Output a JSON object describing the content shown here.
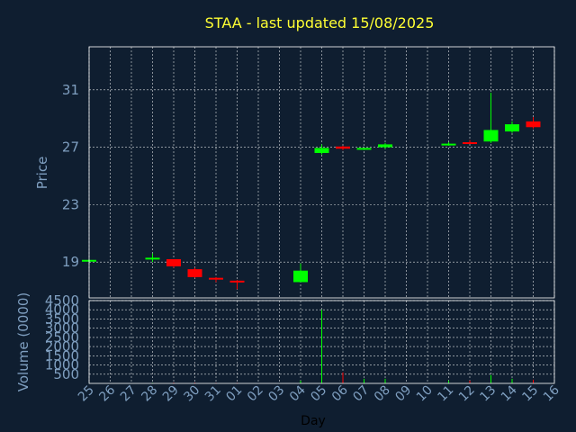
{
  "chart_data": {
    "type": "candlestick",
    "title": "STAA - last updated 15/08/2025",
    "xlabel": "Day",
    "ylabel": "Price",
    "volume_label": "Volume (0000)",
    "x_ticks": [
      "25",
      "26",
      "27",
      "28",
      "29",
      "30",
      "31",
      "01",
      "02",
      "03",
      "04",
      "05",
      "06",
      "07",
      "08",
      "09",
      "10",
      "11",
      "12",
      "13",
      "14",
      "15",
      "16"
    ],
    "price_ticks": [
      19,
      23,
      27,
      31
    ],
    "price_range": [
      16.5,
      34.0
    ],
    "volume_ticks": [
      500,
      1000,
      1500,
      2000,
      2500,
      3000,
      3500,
      4000,
      4500
    ],
    "volume_range": [
      0,
      4500
    ],
    "grid": true,
    "colors": {
      "up": "#00ff00",
      "down": "#ff0000",
      "title": "#ffff33",
      "axis": "#7f9fc0",
      "background": "#0f1e30"
    },
    "candles": [
      {
        "day": "25",
        "open": 19.1,
        "high": 19.2,
        "low": 19.0,
        "close": 19.15,
        "volume": 20
      },
      {
        "day": "28",
        "open": 19.2,
        "high": 19.6,
        "low": 19.0,
        "close": 19.3,
        "volume": 30
      },
      {
        "day": "29",
        "open": 19.2,
        "high": 19.2,
        "low": 18.6,
        "close": 18.7,
        "volume": 40
      },
      {
        "day": "30",
        "open": 18.5,
        "high": 18.6,
        "low": 17.9,
        "close": 17.95,
        "volume": 40
      },
      {
        "day": "31",
        "open": 17.9,
        "high": 17.95,
        "low": 17.6,
        "close": 17.8,
        "volume": 30
      },
      {
        "day": "01",
        "open": 17.7,
        "high": 17.75,
        "low": 17.1,
        "close": 17.65,
        "volume": 30
      },
      {
        "day": "04",
        "open": 17.6,
        "high": 18.9,
        "low": 17.6,
        "close": 18.4,
        "volume": 150
      },
      {
        "day": "05",
        "open": 26.6,
        "high": 27.2,
        "low": 26.5,
        "close": 26.95,
        "volume": 4000
      },
      {
        "day": "06",
        "open": 27.05,
        "high": 27.1,
        "low": 26.8,
        "close": 26.9,
        "volume": 600
      },
      {
        "day": "07",
        "open": 26.85,
        "high": 26.95,
        "low": 26.8,
        "close": 26.95,
        "volume": 250
      },
      {
        "day": "08",
        "open": 27.0,
        "high": 27.3,
        "low": 26.9,
        "close": 27.2,
        "volume": 250
      },
      {
        "day": "11",
        "open": 27.15,
        "high": 27.35,
        "low": 27.1,
        "close": 27.25,
        "volume": 150
      },
      {
        "day": "12",
        "open": 27.35,
        "high": 27.5,
        "low": 27.25,
        "close": 27.3,
        "volume": 150
      },
      {
        "day": "13",
        "open": 27.4,
        "high": 30.8,
        "low": 27.3,
        "close": 28.2,
        "volume": 450
      },
      {
        "day": "14",
        "open": 28.1,
        "high": 28.8,
        "low": 28.0,
        "close": 28.6,
        "volume": 250
      },
      {
        "day": "15",
        "open": 28.8,
        "high": 29.1,
        "low": 28.3,
        "close": 28.4,
        "volume": 200
      }
    ]
  }
}
